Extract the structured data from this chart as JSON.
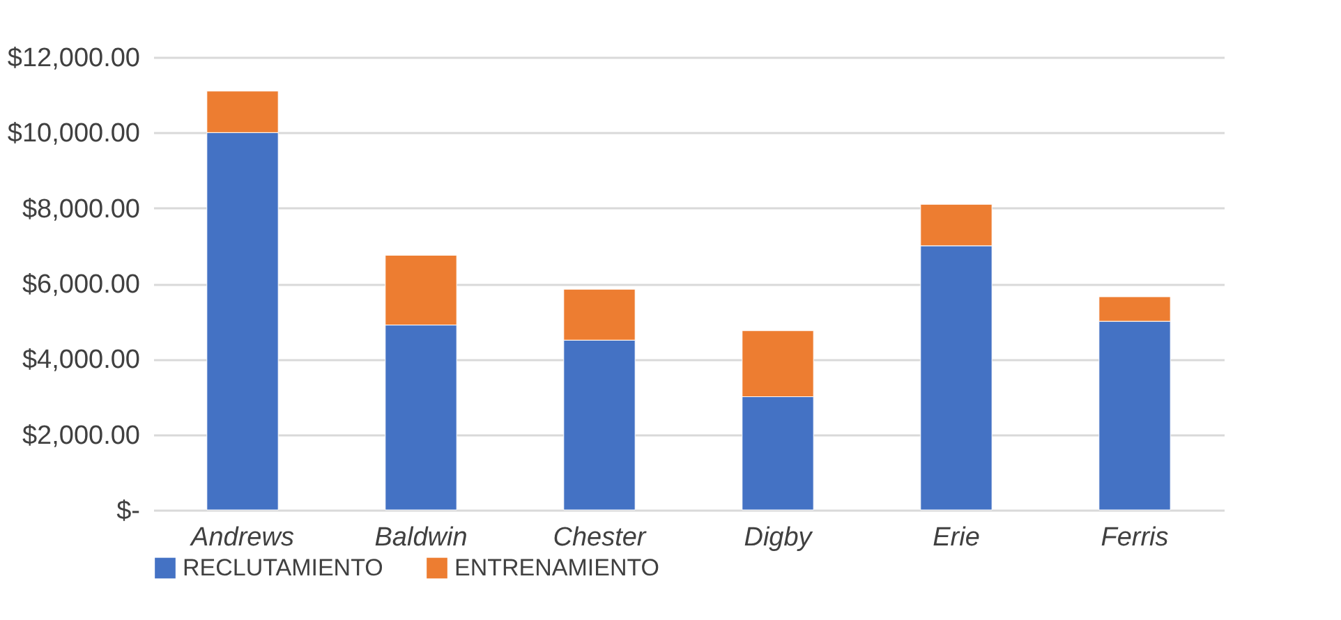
{
  "chart_data": {
    "type": "bar",
    "stacked": true,
    "categories": [
      "Andrews",
      "Baldwin",
      "Chester",
      "Digby",
      "Erie",
      "Ferris"
    ],
    "series": [
      {
        "name": "RECLUTAMIENTO",
        "color": "#4472c4",
        "values": [
          10000,
          4900,
          4500,
          3000,
          7000,
          5000
        ]
      },
      {
        "name": "ENTRENAMIENTO",
        "color": "#ed7d31",
        "values": [
          1100,
          1850,
          1350,
          1750,
          1100,
          650
        ]
      }
    ],
    "ylim": [
      0,
      12000
    ],
    "yticks": [
      {
        "value": 0,
        "label": "$-"
      },
      {
        "value": 2000,
        "label": "$2,000.00"
      },
      {
        "value": 4000,
        "label": "$4,000.00"
      },
      {
        "value": 6000,
        "label": "$6,000.00"
      },
      {
        "value": 8000,
        "label": "$8,000.00"
      },
      {
        "value": 10000,
        "label": "$10,000.00"
      },
      {
        "value": 12000,
        "label": "$12,000.00"
      }
    ],
    "grid": "y",
    "legend": "bottom"
  }
}
